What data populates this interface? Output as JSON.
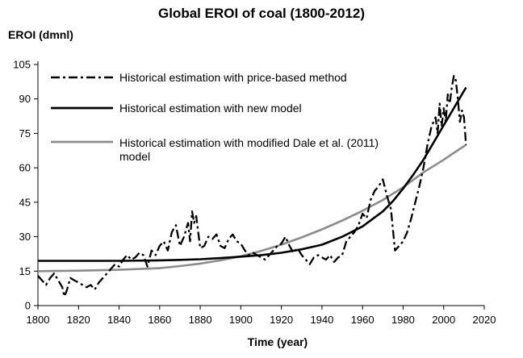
{
  "chart_data": {
    "type": "line",
    "title": "Global EROI of coal (1800-2012)",
    "ylabel": "EROI (dmnl)",
    "xlabel": "Time (year)",
    "xlim": [
      1800,
      2020
    ],
    "ylim": [
      0,
      105
    ],
    "x_ticks": [
      1800,
      1820,
      1840,
      1860,
      1880,
      1900,
      1920,
      1940,
      1960,
      1980,
      2000,
      2020
    ],
    "y_ticks": [
      0,
      15,
      30,
      45,
      60,
      75,
      90,
      105
    ],
    "grid": false,
    "legend_placement": "top-left",
    "series": [
      {
        "name": "Historical estimation with price-based method",
        "style": "dash-dot",
        "color": "#000000",
        "x": [
          1800,
          1802,
          1804,
          1806,
          1808,
          1810,
          1812,
          1813,
          1814,
          1816,
          1818,
          1820,
          1822,
          1824,
          1826,
          1828,
          1830,
          1832,
          1834,
          1836,
          1838,
          1840,
          1842,
          1844,
          1846,
          1848,
          1850,
          1852,
          1854,
          1856,
          1858,
          1860,
          1862,
          1864,
          1866,
          1868,
          1870,
          1872,
          1874,
          1875,
          1876,
          1877,
          1878,
          1880,
          1882,
          1884,
          1886,
          1888,
          1890,
          1892,
          1894,
          1896,
          1898,
          1900,
          1902,
          1904,
          1906,
          1908,
          1910,
          1912,
          1914,
          1916,
          1918,
          1920,
          1922,
          1924,
          1926,
          1928,
          1930,
          1932,
          1934,
          1936,
          1938,
          1940,
          1942,
          1944,
          1946,
          1948,
          1950,
          1952,
          1954,
          1956,
          1958,
          1960,
          1962,
          1964,
          1966,
          1968,
          1970,
          1972,
          1974,
          1976,
          1978,
          1980,
          1982,
          1984,
          1986,
          1988,
          1990,
          1992,
          1994,
          1996,
          1997,
          1998,
          1999,
          2000,
          2001,
          2002,
          2003,
          2004,
          2005,
          2006,
          2007,
          2008,
          2009,
          2010,
          2011
        ],
        "values": [
          13,
          11,
          9,
          12,
          14,
          11,
          8,
          4,
          6,
          12,
          11,
          10,
          9,
          8,
          9,
          7,
          10,
          12,
          14,
          16,
          18,
          17,
          20,
          22,
          20,
          21,
          23,
          22,
          17,
          24,
          22,
          26,
          28,
          24,
          32,
          35,
          26,
          30,
          36,
          28,
          41,
          36,
          39,
          25,
          26,
          30,
          29,
          31,
          26,
          25,
          29,
          31,
          28,
          27,
          24,
          22,
          23,
          22,
          21,
          20,
          22,
          24,
          26,
          27,
          30,
          26,
          23,
          25,
          22,
          20,
          18,
          21,
          22,
          21,
          20,
          22,
          19,
          21,
          22,
          28,
          30,
          32,
          35,
          40,
          38,
          46,
          50,
          52,
          55,
          48,
          42,
          24,
          26,
          28,
          32,
          38,
          45,
          52,
          60,
          70,
          78,
          82,
          75,
          88,
          78,
          86,
          80,
          92,
          88,
          95,
          100,
          98,
          90,
          80,
          85,
          82,
          70
        ]
      },
      {
        "name": "Historical estimation with new model",
        "style": "solid",
        "color": "#000000",
        "x": [
          1800,
          1820,
          1840,
          1860,
          1870,
          1880,
          1890,
          1900,
          1910,
          1920,
          1930,
          1940,
          1950,
          1960,
          1970,
          1975,
          1980,
          1985,
          1990,
          1995,
          2000,
          2005,
          2011
        ],
        "values": [
          19.5,
          19.5,
          19.5,
          19.7,
          19.9,
          20.2,
          20.7,
          21.3,
          22,
          23,
          24.5,
          26.5,
          30,
          34.5,
          41,
          45.5,
          51,
          57,
          63.5,
          71,
          78.5,
          86,
          95
        ]
      },
      {
        "name": "Historical estimation with modified Dale et al. (2011) model",
        "style": "solid",
        "color": "#8c8c8c",
        "x": [
          1800,
          1820,
          1840,
          1860,
          1870,
          1880,
          1890,
          1900,
          1910,
          1920,
          1930,
          1940,
          1950,
          1960,
          1970,
          1980,
          1990,
          2000,
          2005,
          2011
        ],
        "values": [
          15,
          15.2,
          15.6,
          16.3,
          17.2,
          18.3,
          19.7,
          21.5,
          23.8,
          26.5,
          29.7,
          33.2,
          37,
          41.3,
          46,
          51.5,
          58,
          63.5,
          66.5,
          70
        ]
      }
    ]
  }
}
